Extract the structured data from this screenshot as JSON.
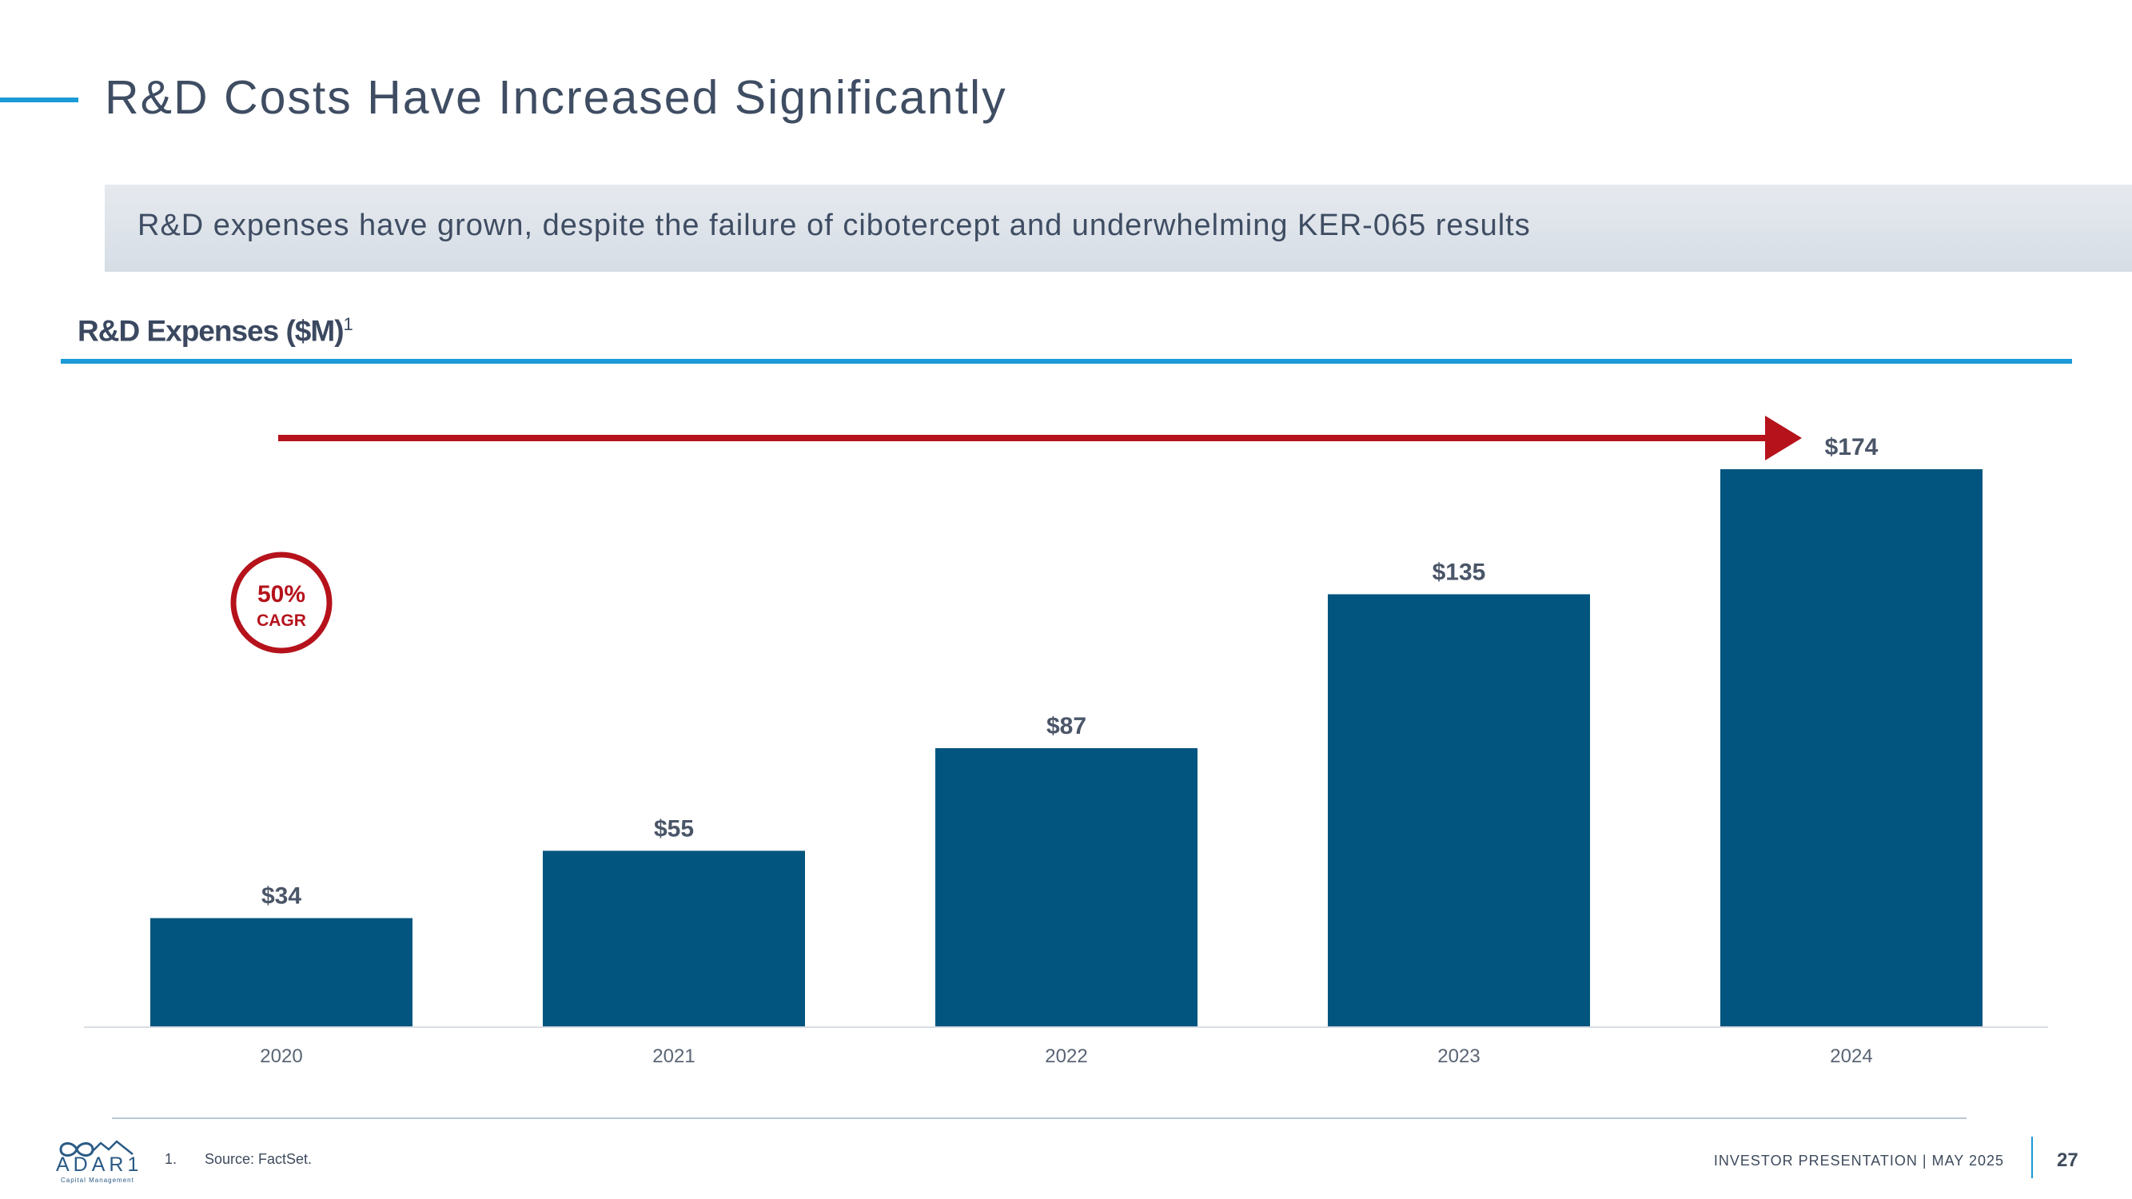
{
  "header": {
    "title": "R&D Costs Have Increased Significantly",
    "subtitle": "R&D expenses have grown, despite the failure of cibotercept and underwhelming KER-065 results"
  },
  "chart_heading": {
    "text": "R&D Expenses ($M)",
    "footnote_marker": "1"
  },
  "chart_data": {
    "type": "bar",
    "categories": [
      "2020",
      "2021",
      "2022",
      "2023",
      "2024"
    ],
    "values": [
      34,
      55,
      87,
      135,
      174
    ],
    "value_labels": [
      "$34",
      "$55",
      "$87",
      "$135",
      "$174"
    ],
    "ylim": [
      0,
      174
    ],
    "bar_color": "#02557e",
    "annotation": {
      "value": "50%",
      "label": "CAGR",
      "color": "#b5121b"
    }
  },
  "footer": {
    "logo_text": "ADAR1",
    "logo_subtext": "Capital Management",
    "footnote_number": "1.",
    "footnote_text": "Source: FactSet.",
    "label": "INVESTOR PRESENTATION  |  MAY 2025",
    "page_number": "27"
  },
  "colors": {
    "accent": "#1a9ad6",
    "title": "#3f4d63",
    "bar": "#02557e",
    "arrow": "#b5121b"
  }
}
